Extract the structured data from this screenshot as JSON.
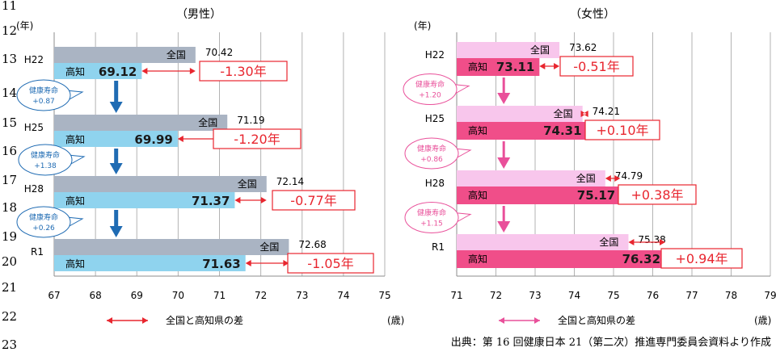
{
  "line_numbers": [
    "11",
    "12",
    "13",
    "14",
    "15",
    "16",
    "17",
    "18",
    "19",
    "20",
    "21",
    "22",
    "23"
  ],
  "source_note": "出典：第 16 回健康日本 21（第二次）推進専門委員会資料より作成",
  "legend_text": "全国と高知県の差",
  "colors": {
    "male_national": "#aab4c3",
    "male_kochi": "#8fd3ee",
    "male_arrow": "#1f6bb3",
    "female_national": "#f8c6ec",
    "female_kochi": "#f04e89",
    "female_arrow": "#e9509a",
    "diff": "#e8262f",
    "grid": "#b3b3b3"
  },
  "chart_data": [
    {
      "type": "bar",
      "title": "（男性）",
      "ylabel": "(年)",
      "xlabel": "(歳)",
      "xlim": [
        67,
        75
      ],
      "xticks": [
        "67",
        "68",
        "69",
        "70",
        "71",
        "72",
        "73",
        "74",
        "75"
      ],
      "categories": [
        "H22",
        "H25",
        "H28",
        "R1"
      ],
      "series": [
        {
          "name": "全国",
          "values": [
            70.42,
            71.19,
            72.14,
            72.68
          ],
          "labels": [
            "70.42",
            "71.19",
            "72.14",
            "72.68"
          ]
        },
        {
          "name": "高知",
          "values": [
            69.12,
            69.99,
            71.37,
            71.63
          ],
          "labels": [
            "69.12",
            "69.99",
            "71.37",
            "71.63"
          ]
        }
      ],
      "differences": [
        "-1.30年",
        "-1.20年",
        "-0.77年",
        "-1.05年"
      ],
      "improvements": [
        {
          "label": "健康寿命",
          "value": "+0.87"
        },
        {
          "label": "健康寿命",
          "value": "+1.38"
        },
        {
          "label": "健康寿命",
          "value": "+0.26"
        }
      ]
    },
    {
      "type": "bar",
      "title": "（女性）",
      "ylabel": "(年)",
      "xlabel": "(歳)",
      "xlim": [
        71,
        79
      ],
      "xticks": [
        "71",
        "72",
        "73",
        "74",
        "75",
        "76",
        "77",
        "78",
        "79"
      ],
      "categories": [
        "H22",
        "H25",
        "H28",
        "R1"
      ],
      "series": [
        {
          "name": "全国",
          "values": [
            73.62,
            74.21,
            74.79,
            75.38
          ],
          "labels": [
            "73.62",
            "74.21",
            "74.79",
            "75.38"
          ]
        },
        {
          "name": "高知",
          "values": [
            73.11,
            74.31,
            75.17,
            76.32
          ],
          "labels": [
            "73.11",
            "74.31",
            "75.17",
            "76.32"
          ]
        }
      ],
      "differences": [
        "-0.51年",
        "+0.10年",
        "+0.38年",
        "+0.94年"
      ],
      "improvements": [
        {
          "label": "健康寿命",
          "value": "+1.20"
        },
        {
          "label": "健康寿命",
          "value": "+0.86"
        },
        {
          "label": "健康寿命",
          "value": "+1.15"
        }
      ]
    }
  ]
}
